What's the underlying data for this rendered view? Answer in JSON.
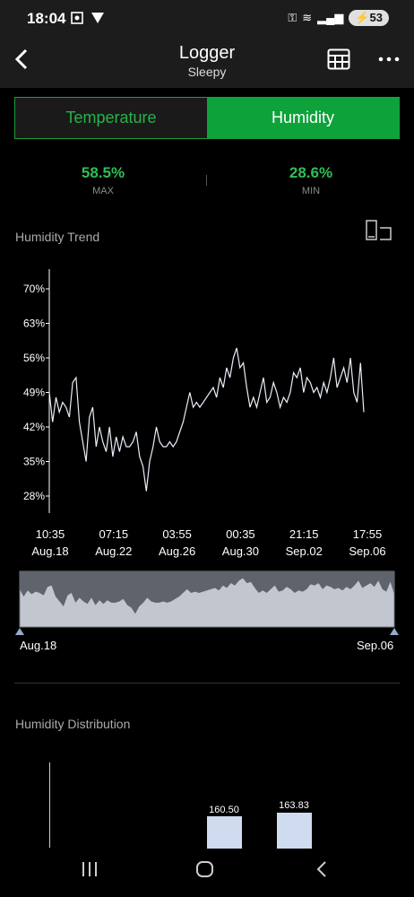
{
  "status_bar": {
    "time": "18:04",
    "battery": "53"
  },
  "app_bar": {
    "title": "Logger",
    "subtitle": "Sleepy"
  },
  "tabs": [
    {
      "label": "Temperature",
      "active": false
    },
    {
      "label": "Humidity",
      "active": true
    }
  ],
  "stats": {
    "max_value": "58.5%",
    "max_label": "MAX",
    "min_value": "28.6%",
    "min_label": "MIN"
  },
  "trend": {
    "title": "Humidity Trend"
  },
  "overview": {
    "start_label": "Aug.18",
    "end_label": "Sep.06"
  },
  "distribution": {
    "title": "Humidity Distribution",
    "bar_labels": [
      "160.50",
      "163.83"
    ]
  },
  "chart_data": {
    "type": "line",
    "ylim": [
      24,
      74
    ],
    "y_ticks": [
      "70%",
      "63%",
      "56%",
      "49%",
      "42%",
      "35%",
      "28%"
    ],
    "x_ticks": [
      {
        "time": "10:35",
        "date": "Aug.18"
      },
      {
        "time": "07:15",
        "date": "Aug.22"
      },
      {
        "time": "03:55",
        "date": "Aug.26"
      },
      {
        "time": "00:35",
        "date": "Aug.30"
      },
      {
        "time": "21:15",
        "date": "Sep.02"
      },
      {
        "time": "17:55",
        "date": "Sep.06"
      }
    ],
    "values": [
      49,
      43,
      48,
      45,
      47,
      46,
      44,
      51,
      52,
      43,
      39,
      35,
      44,
      46,
      38,
      42,
      39,
      37,
      42,
      36,
      40,
      37,
      40,
      38,
      38,
      39,
      41,
      36,
      34,
      29,
      35,
      38,
      42,
      39,
      38,
      38,
      39,
      38,
      39,
      41,
      43,
      46,
      49,
      46,
      47,
      46,
      47,
      48,
      49,
      50,
      48,
      52,
      50,
      54,
      52,
      56,
      58,
      54,
      55,
      50,
      46,
      48,
      46,
      49,
      52,
      47,
      48,
      51,
      49,
      46,
      48,
      47,
      49,
      53,
      52,
      54,
      49,
      52,
      51,
      49,
      50,
      48,
      51,
      49,
      52,
      56,
      50,
      52,
      54,
      51,
      56,
      49,
      47,
      55,
      45
    ]
  }
}
